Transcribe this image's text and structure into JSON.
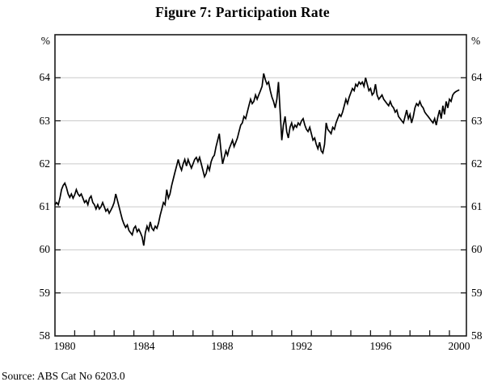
{
  "page": {
    "title": "Figure 7: Participation Rate",
    "source": "Source: ABS Cat No 6203.0"
  },
  "chart_data": {
    "type": "line",
    "title": "Figure 7: Participation Rate",
    "unit_label": "%",
    "source": "Source: ABS Cat No 6203.0",
    "grid": true,
    "legend": "none",
    "line_color": "#000000",
    "grid_color": "#c9c9c9",
    "axis_color": "#1a1a1a",
    "y_axis": {
      "min": 58,
      "max": 65,
      "ticks": [
        58,
        59,
        60,
        61,
        62,
        63,
        64
      ],
      "gridlines": [
        59,
        60,
        61,
        62,
        63,
        64
      ]
    },
    "x_axis": {
      "start_year": 1980,
      "tick_years": [
        1981,
        1982,
        1983,
        1984,
        1985,
        1986,
        1987,
        1988,
        1989,
        1990,
        1991,
        1992,
        1993,
        1994,
        1995,
        1996,
        1997,
        1998,
        1999,
        2000
      ],
      "label_years": [
        1980,
        1984,
        1988,
        1992,
        1996,
        2000
      ]
    },
    "series": [
      {
        "name": "Participation rate (monthly)",
        "x_start": 1980.0,
        "x_step": 0.0833333,
        "values": [
          61.05,
          61.1,
          61.05,
          61.2,
          61.4,
          61.5,
          61.55,
          61.45,
          61.3,
          61.22,
          61.3,
          61.2,
          61.28,
          61.4,
          61.3,
          61.25,
          61.3,
          61.2,
          61.1,
          61.15,
          61.05,
          61.2,
          61.25,
          61.1,
          61.05,
          60.95,
          61.05,
          60.95,
          61.0,
          61.1,
          61.0,
          60.9,
          60.95,
          60.85,
          60.92,
          61.0,
          61.1,
          61.3,
          61.15,
          61.0,
          60.85,
          60.7,
          60.6,
          60.52,
          60.58,
          60.45,
          60.4,
          60.35,
          60.5,
          60.55,
          60.42,
          60.48,
          60.4,
          60.3,
          60.1,
          60.4,
          60.55,
          60.45,
          60.65,
          60.5,
          60.45,
          60.55,
          60.5,
          60.62,
          60.8,
          60.95,
          61.1,
          61.05,
          61.4,
          61.2,
          61.3,
          61.5,
          61.65,
          61.8,
          61.95,
          62.1,
          61.95,
          61.85,
          62.0,
          62.1,
          61.95,
          62.1,
          62.0,
          61.9,
          62.0,
          62.1,
          62.15,
          62.05,
          62.15,
          62.0,
          61.85,
          61.7,
          61.78,
          61.95,
          61.85,
          62.05,
          62.15,
          62.2,
          62.4,
          62.55,
          62.7,
          62.3,
          62.0,
          62.15,
          62.3,
          62.2,
          62.35,
          62.45,
          62.55,
          62.4,
          62.5,
          62.6,
          62.75,
          62.9,
          62.95,
          63.1,
          63.05,
          63.2,
          63.35,
          63.5,
          63.4,
          63.45,
          63.6,
          63.5,
          63.6,
          63.7,
          63.8,
          64.1,
          63.95,
          63.85,
          63.9,
          63.7,
          63.55,
          63.45,
          63.3,
          63.5,
          63.9,
          63.2,
          62.55,
          62.9,
          63.1,
          62.75,
          62.6,
          62.85,
          62.95,
          62.8,
          62.9,
          62.85,
          62.95,
          62.9,
          63.0,
          63.05,
          62.9,
          62.8,
          62.75,
          62.85,
          62.7,
          62.55,
          62.6,
          62.45,
          62.35,
          62.5,
          62.3,
          62.25,
          62.45,
          62.95,
          62.8,
          62.75,
          62.7,
          62.85,
          62.8,
          62.95,
          63.05,
          63.15,
          63.1,
          63.2,
          63.35,
          63.5,
          63.4,
          63.55,
          63.65,
          63.75,
          63.7,
          63.85,
          63.8,
          63.9,
          63.85,
          63.9,
          63.8,
          64.0,
          63.85,
          63.7,
          63.75,
          63.6,
          63.65,
          63.85,
          63.6,
          63.5,
          63.55,
          63.6,
          63.5,
          63.45,
          63.4,
          63.35,
          63.45,
          63.35,
          63.3,
          63.2,
          63.25,
          63.1,
          63.05,
          63.0,
          62.95,
          63.1,
          63.25,
          63.05,
          63.15,
          62.95,
          63.1,
          63.3,
          63.4,
          63.35,
          63.45,
          63.35,
          63.3,
          63.2,
          63.15,
          63.1,
          63.05,
          63.0,
          62.95,
          63.05,
          62.9,
          63.1,
          63.25,
          63.05,
          63.35,
          63.15,
          63.45,
          63.3,
          63.5,
          63.45,
          63.6,
          63.65,
          63.68,
          63.7,
          63.72
        ]
      }
    ]
  }
}
